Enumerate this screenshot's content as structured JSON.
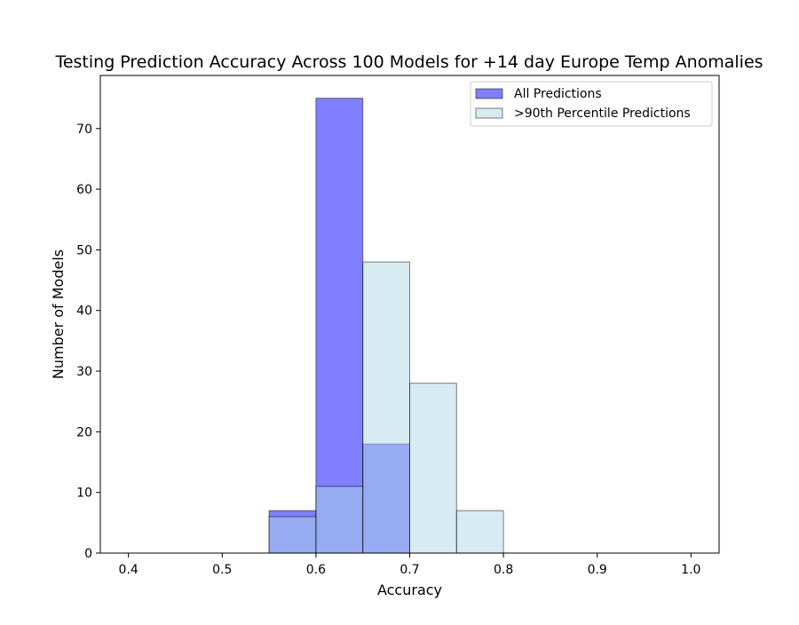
{
  "chart_data": {
    "type": "bar",
    "title": "Testing Prediction Accuracy Across 100 Models for +14 day Europe Temp Anomalies",
    "xlabel": "Accuracy",
    "ylabel": "Number of Models",
    "xlim": [
      0.37,
      1.03
    ],
    "ylim": [
      0,
      78.75
    ],
    "xticks": [
      0.4,
      0.5,
      0.6,
      0.7,
      0.8,
      0.9,
      1.0
    ],
    "xtick_labels": [
      "0.4",
      "0.5",
      "0.6",
      "0.7",
      "0.8",
      "0.9",
      "1.0"
    ],
    "yticks": [
      0,
      10,
      20,
      30,
      40,
      50,
      60,
      70
    ],
    "ytick_labels": [
      "0",
      "10",
      "20",
      "30",
      "40",
      "50",
      "60",
      "70"
    ],
    "grid": false,
    "legend_position": "upper right",
    "bin_edges": [
      0.55,
      0.6,
      0.65,
      0.7,
      0.75,
      0.8
    ],
    "series": [
      {
        "name": "All Predictions",
        "values": [
          7,
          75,
          18,
          0,
          0
        ],
        "color": "#0000ff",
        "alpha": 0.5
      },
      {
        "name": ">90th Percentile Predictions",
        "values": [
          6,
          11,
          48,
          28,
          7
        ],
        "color": "#add8e6",
        "alpha": 0.5
      }
    ]
  }
}
